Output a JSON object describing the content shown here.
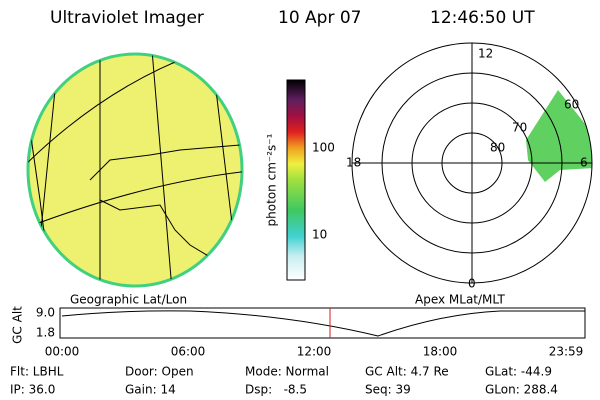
{
  "header": {
    "title": "Ultraviolet Imager",
    "date": "10 Apr 07",
    "time": "12:46:50 UT"
  },
  "colorbar": {
    "label": "photon cm⁻²s⁻¹",
    "ticks": [
      "100",
      "10"
    ]
  },
  "panels": {
    "left_label": "Geographic Lat/Lon",
    "right_label": "Apex MLat/MLT"
  },
  "polar": {
    "mlt": [
      "12",
      "18",
      "6",
      "0"
    ],
    "mlat": [
      "60",
      "70",
      "80"
    ]
  },
  "timeline": {
    "axis_label": "GC Alt",
    "yticks": [
      "9.0",
      "1.8"
    ],
    "xticks": [
      "00:00",
      "06:00",
      "12:00",
      "18:00",
      "23:59"
    ]
  },
  "footer": [
    [
      "Flt: LBHL",
      "IP: 36.0"
    ],
    [
      "Door: Open",
      "Gain: 14"
    ],
    [
      "Mode: Normal",
      "Dsp:   -8.5"
    ],
    [
      "GC Alt: 4.7 Re",
      "Seq: 39"
    ],
    [
      "GLat: -44.9",
      "GLon: 288.4"
    ]
  ]
}
